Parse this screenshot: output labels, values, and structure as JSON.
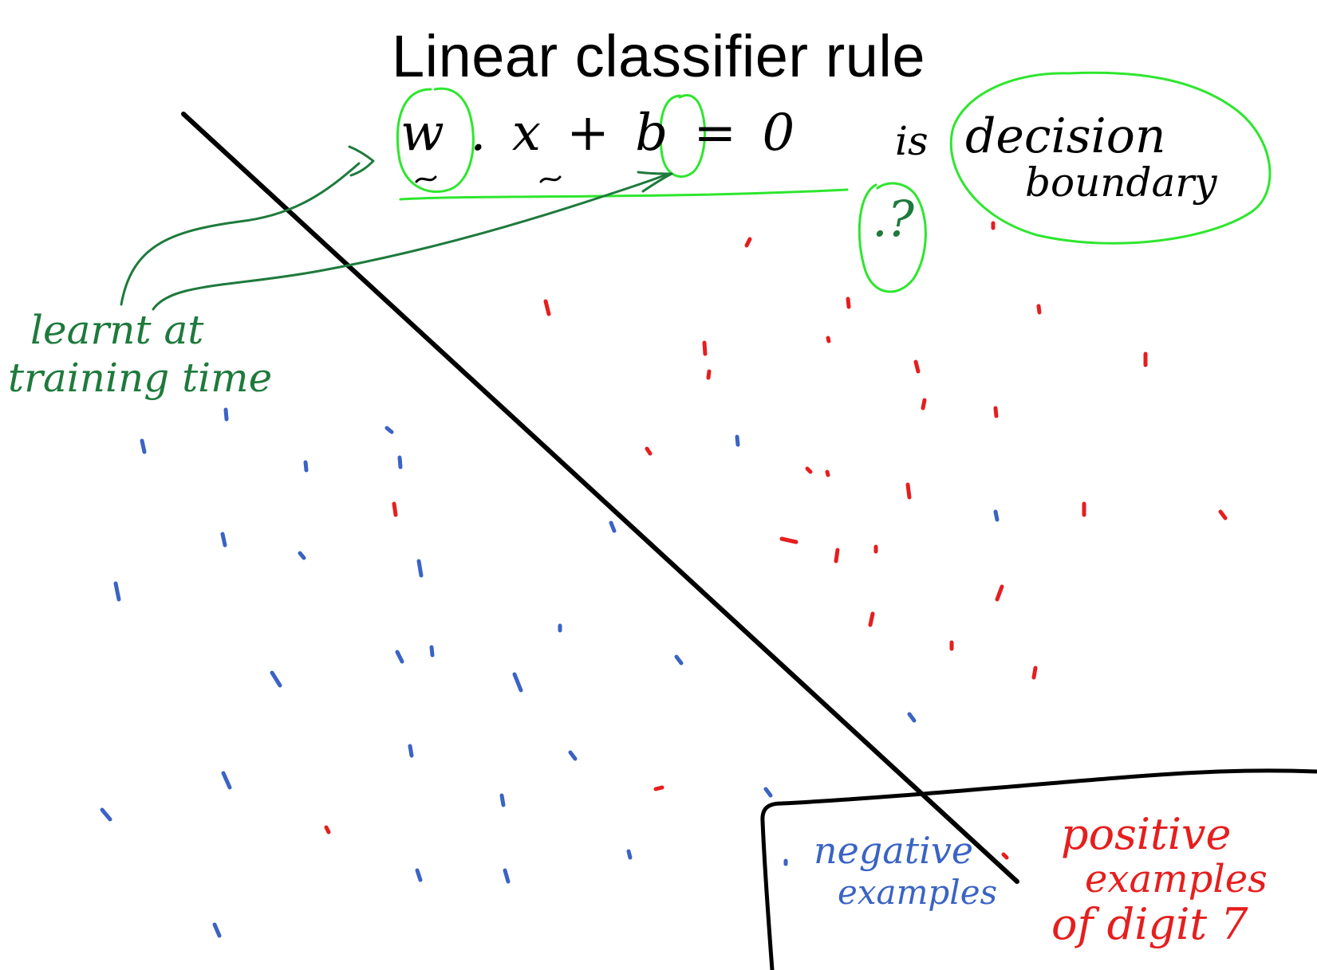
{
  "title": "Linear classifier rule",
  "rule": {
    "equation": "w . x + b = 0",
    "is_word": "is",
    "decision_word": "decision",
    "boundary_word": "boundary",
    "question_mark": ".?"
  },
  "annotation": {
    "line1": "learnt at",
    "line2": "training time"
  },
  "legend": {
    "negative_line1": "negative",
    "negative_line2": "examples",
    "positive_line1": "positive",
    "positive_line2": "examples",
    "positive_line3": "of digit 7"
  },
  "colors": {
    "title_ink": "#000000",
    "highlight_green": "#2ee62e",
    "annotation_green": "#1e7a3c",
    "negative_blue": "#3a63c4",
    "positive_red": "#e61e1e"
  }
}
